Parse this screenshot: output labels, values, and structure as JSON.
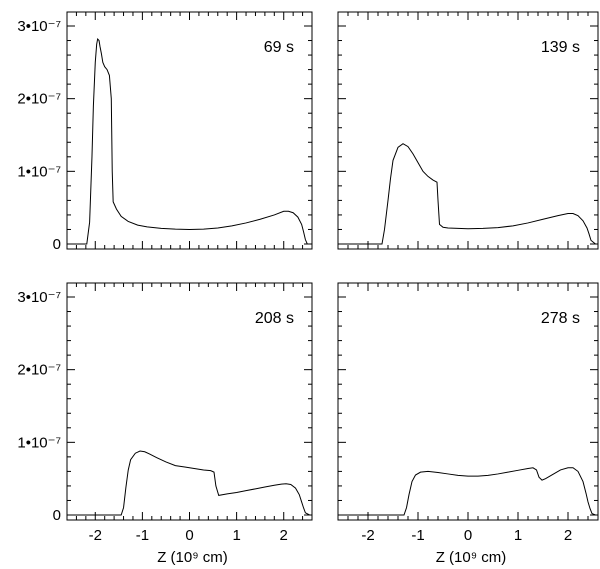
{
  "chart_data": [
    {
      "type": "line",
      "annotation": "69 s",
      "xlim": [
        -2.6,
        2.6
      ],
      "ylim": [
        0,
        3e-07
      ],
      "x": [
        -2.45,
        -2.18,
        -2.12,
        -2.07,
        -2.04,
        -2.0,
        -1.97,
        -1.95,
        -1.92,
        -1.9,
        -1.87,
        -1.84,
        -1.8,
        -1.75,
        -1.7,
        -1.66,
        -1.64,
        -1.62,
        -1.55,
        -1.45,
        -1.3,
        -1.1,
        -0.9,
        -0.6,
        -0.3,
        0.0,
        0.3,
        0.6,
        0.9,
        1.2,
        1.5,
        1.8,
        2.0,
        2.1,
        2.2,
        2.3,
        2.38,
        2.42,
        2.46,
        2.5,
        2.55
      ],
      "values": [
        0,
        0,
        3e-08,
        1.2e-07,
        1.9e-07,
        2.5e-07,
        2.75e-07,
        2.82e-07,
        2.8e-07,
        2.72e-07,
        2.62e-07,
        2.5e-07,
        2.44e-07,
        2.4e-07,
        2.32e-07,
        2e-07,
        1e-07,
        5.8e-08,
        4.8e-08,
        3.8e-08,
        3.1e-08,
        2.6e-08,
        2.35e-08,
        2.15e-08,
        2.05e-08,
        2e-08,
        2.05e-08,
        2.2e-08,
        2.5e-08,
        2.9e-08,
        3.4e-08,
        4e-08,
        4.5e-08,
        4.5e-08,
        4.3e-08,
        3.7e-08,
        2.7e-08,
        1.7e-08,
        6e-09,
        0,
        0
      ]
    },
    {
      "type": "line",
      "annotation": "139 s",
      "xlim": [
        -2.6,
        2.6
      ],
      "ylim": [
        0,
        3e-07
      ],
      "x": [
        -2.55,
        -1.72,
        -1.67,
        -1.6,
        -1.55,
        -1.5,
        -1.4,
        -1.3,
        -1.2,
        -1.1,
        -1.0,
        -0.9,
        -0.8,
        -0.7,
        -0.62,
        -0.6,
        -0.57,
        -0.5,
        -0.4,
        -0.2,
        0.0,
        0.3,
        0.6,
        0.9,
        1.2,
        1.5,
        1.8,
        2.0,
        2.1,
        2.2,
        2.3,
        2.38,
        2.42,
        2.46,
        2.55
      ],
      "values": [
        0,
        0,
        2e-08,
        6e-08,
        9e-08,
        1.15e-07,
        1.33e-07,
        1.38e-07,
        1.34e-07,
        1.24e-07,
        1.12e-07,
        1e-07,
        9.3e-08,
        8.8e-08,
        8.5e-08,
        6e-08,
        2.7e-08,
        2.3e-08,
        2.2e-08,
        2.15e-08,
        2.1e-08,
        2.15e-08,
        2.25e-08,
        2.5e-08,
        2.9e-08,
        3.4e-08,
        3.9e-08,
        4.2e-08,
        4.2e-08,
        3.9e-08,
        3.2e-08,
        2.2e-08,
        1.4e-08,
        5e-09,
        0
      ]
    },
    {
      "type": "line",
      "annotation": "208 s",
      "xlim": [
        -2.6,
        2.6
      ],
      "ylim": [
        0,
        3e-07
      ],
      "x": [
        -2.55,
        -1.45,
        -1.4,
        -1.35,
        -1.3,
        -1.25,
        -1.15,
        -1.05,
        -0.95,
        -0.85,
        -0.7,
        -0.5,
        -0.3,
        -0.1,
        0.1,
        0.3,
        0.45,
        0.52,
        0.56,
        0.62,
        0.8,
        1.0,
        1.2,
        1.4,
        1.6,
        1.8,
        1.95,
        2.05,
        2.15,
        2.25,
        2.33,
        2.38,
        2.42,
        2.46,
        2.55
      ],
      "values": [
        0,
        0,
        1e-08,
        3.8e-08,
        6.2e-08,
        7.6e-08,
        8.5e-08,
        8.8e-08,
        8.7e-08,
        8.4e-08,
        7.9e-08,
        7.3e-08,
        6.8e-08,
        6.6e-08,
        6.4e-08,
        6.2e-08,
        6.1e-08,
        5.9e-08,
        4e-08,
        2.7e-08,
        2.9e-08,
        3.1e-08,
        3.35e-08,
        3.6e-08,
        3.85e-08,
        4.1e-08,
        4.25e-08,
        4.3e-08,
        4.2e-08,
        3.7e-08,
        2.8e-08,
        1.8e-08,
        1e-08,
        3e-09,
        0
      ]
    },
    {
      "type": "line",
      "annotation": "278 s",
      "xlim": [
        -2.6,
        2.6
      ],
      "ylim": [
        0,
        3e-07
      ],
      "x": [
        -2.55,
        -1.28,
        -1.23,
        -1.18,
        -1.12,
        -1.05,
        -0.95,
        -0.8,
        -0.6,
        -0.4,
        -0.2,
        0.0,
        0.2,
        0.4,
        0.6,
        0.8,
        1.0,
        1.2,
        1.3,
        1.37,
        1.42,
        1.48,
        1.55,
        1.7,
        1.85,
        2.0,
        2.1,
        2.2,
        2.3,
        2.36,
        2.4,
        2.44,
        2.48,
        2.55
      ],
      "values": [
        0,
        0,
        1e-08,
        2.8e-08,
        4.6e-08,
        5.5e-08,
        5.9e-08,
        6e-08,
        5.85e-08,
        5.65e-08,
        5.45e-08,
        5.35e-08,
        5.35e-08,
        5.45e-08,
        5.65e-08,
        5.9e-08,
        6.15e-08,
        6.4e-08,
        6.5e-08,
        6.2e-08,
        5.2e-08,
        4.8e-08,
        5e-08,
        5.6e-08,
        6.2e-08,
        6.5e-08,
        6.5e-08,
        6e-08,
        4.6e-08,
        3e-08,
        1.8e-08,
        9e-09,
        2e-09,
        0
      ]
    }
  ],
  "axes": {
    "xlabel": "Z (10⁹ cm)",
    "x_ticks": [
      -2,
      -1,
      0,
      1,
      2
    ],
    "x_tick_labels": [
      "-2",
      "-1",
      "0",
      "1",
      "2"
    ],
    "y_ticks": [
      0,
      1e-07,
      2e-07,
      3e-07
    ],
    "y_tick_labels": [
      "0",
      "1•10⁻⁷",
      "2•10⁻⁷",
      "3•10⁻⁷"
    ]
  }
}
